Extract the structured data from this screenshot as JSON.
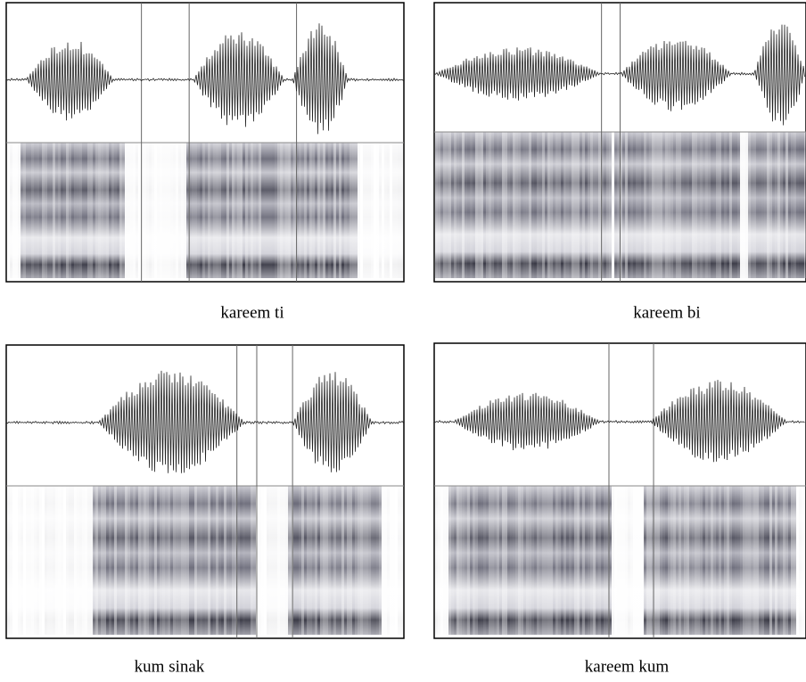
{
  "figure": {
    "captions": [
      "kareem ti",
      "kareem bi",
      "kum sinak",
      "kareem kum"
    ]
  }
}
